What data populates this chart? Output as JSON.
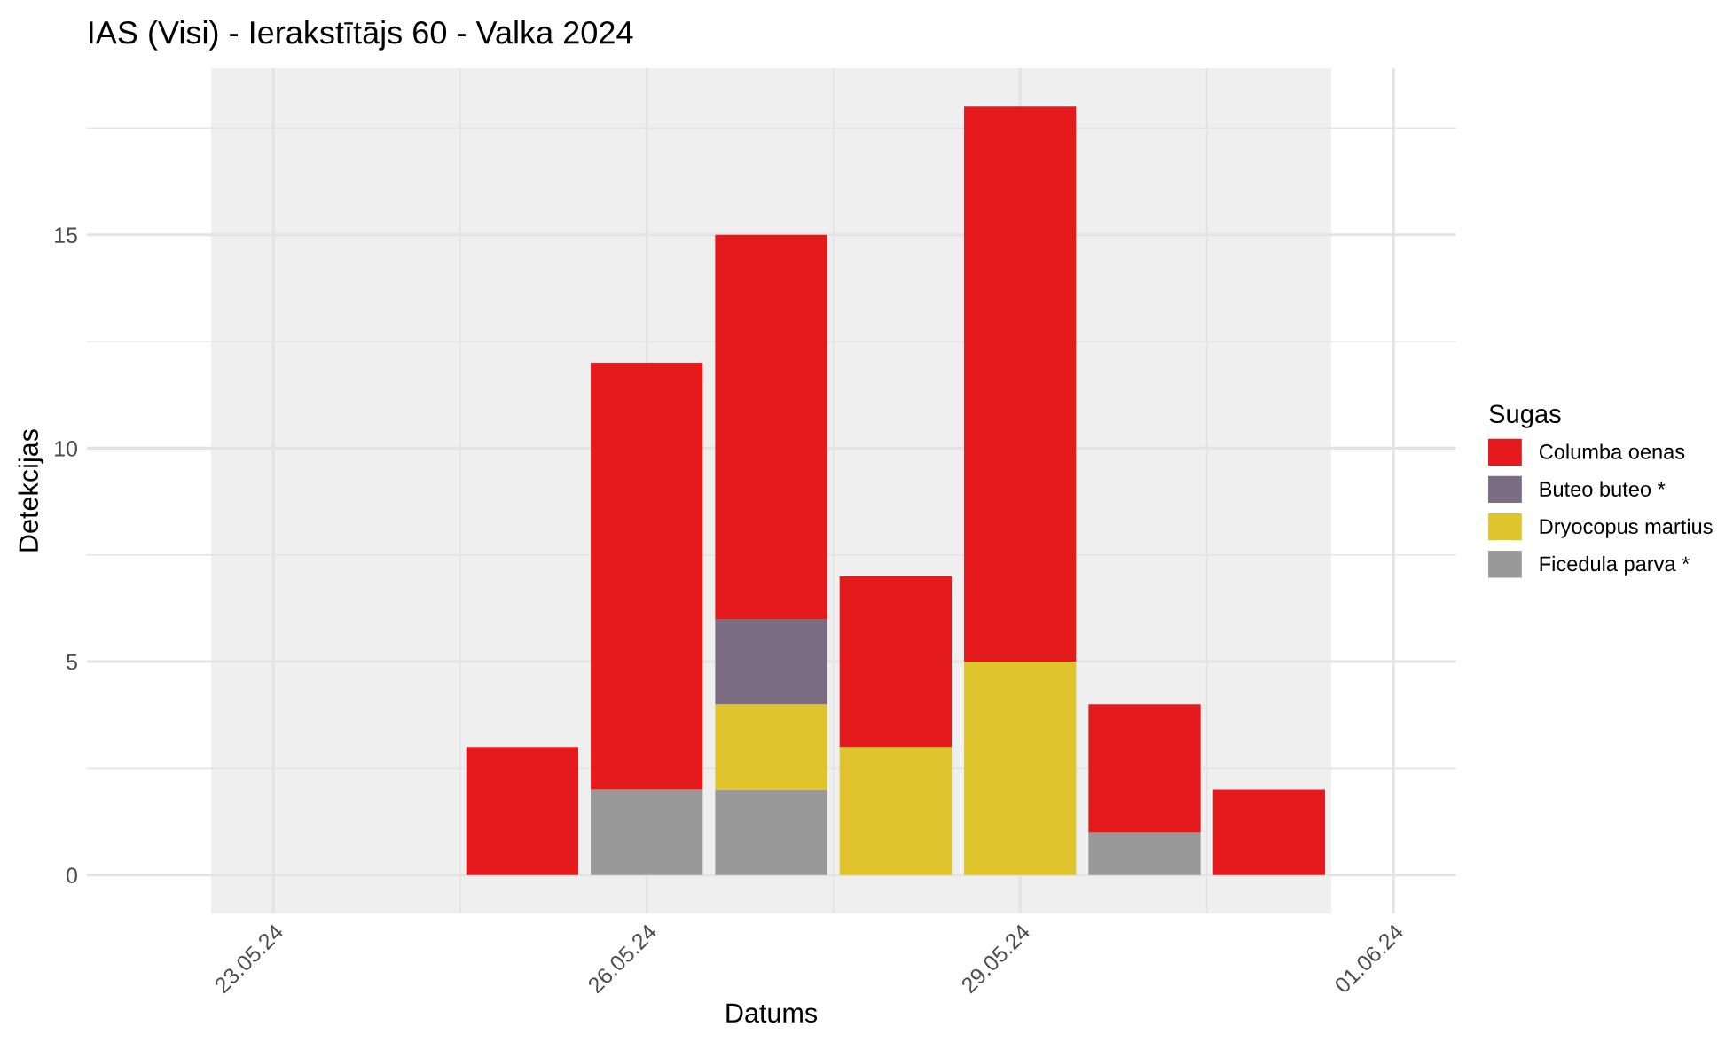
{
  "chart_data": {
    "type": "bar",
    "stacked": true,
    "title": "IAS (Visi) - Ierakstītājs 60 - Valka 2024",
    "xlabel": "Datums",
    "ylabel": "Detekcijas",
    "legend_title": "Sugas",
    "legend": "right",
    "x": [
      "2024-05-25",
      "2024-05-26",
      "2024-05-27",
      "2024-05-28",
      "2024-05-29",
      "2024-05-30",
      "2024-05-31"
    ],
    "series": [
      {
        "name": "Ficedula parva *",
        "color": "#999999",
        "values": [
          null,
          2,
          2,
          null,
          null,
          1,
          null
        ]
      },
      {
        "name": "Dryocopus martius",
        "color": "#e0c42e",
        "values": [
          null,
          null,
          2,
          3,
          5,
          null,
          null
        ]
      },
      {
        "name": "Buteo buteo *",
        "color": "#7c6c83",
        "values": [
          null,
          null,
          2,
          null,
          null,
          null,
          null
        ]
      },
      {
        "name": "Columba oenas",
        "color": "#e41a1c",
        "values": [
          3,
          10,
          9,
          4,
          13,
          3,
          2
        ]
      }
    ],
    "xlim": [
      "2024-05-21T12:00",
      "2024-06-01T12:00"
    ],
    "xticks": [
      {
        "value": "2024-05-23",
        "label": "23.05.24"
      },
      {
        "value": "2024-05-26",
        "label": "26.05.24"
      },
      {
        "value": "2024-05-29",
        "label": "29.05.24"
      },
      {
        "value": "2024-06-01",
        "label": "01.06.24"
      }
    ],
    "ylim": [
      -0.9,
      18.9
    ],
    "yticks": [
      0,
      5,
      10,
      15
    ],
    "bands": [
      {
        "axis": "x",
        "from": "2024-05-22T12:00",
        "to": "2024-05-31T12:00",
        "color": "#efefef"
      }
    ],
    "grid": true
  }
}
